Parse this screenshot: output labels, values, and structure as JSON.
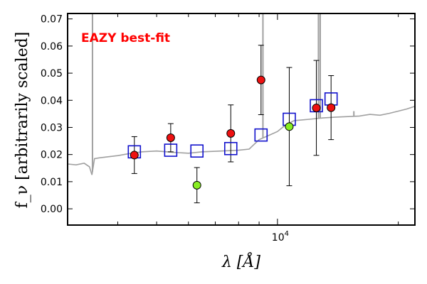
{
  "chart_data": {
    "type": "scatter",
    "title": "",
    "xlabel": "λ [Å]",
    "ylabel": "f_ν [arbitrarily scaled]",
    "xscale": "log",
    "xlim": [
      3000,
      22000
    ],
    "ylim": [
      -0.006,
      0.072
    ],
    "yticks": [
      0.0,
      0.01,
      0.02,
      0.03,
      0.04,
      0.05,
      0.06,
      0.07
    ],
    "ytick_labels": [
      "0.00",
      "0.01",
      "0.02",
      "0.03",
      "0.04",
      "0.05",
      "0.06",
      "0.07"
    ],
    "xtick_major": {
      "value": 10000,
      "label_base": "10",
      "label_exp": "4"
    },
    "xtick_minor": [
      4000,
      5000,
      6000,
      7000,
      8000,
      9000,
      20000
    ],
    "annotation": {
      "text": "EAZY best-fit",
      "color": "#ff0000"
    },
    "colors": {
      "model": "#a0a0a0",
      "observed_fill": "#ee1111",
      "lowsn_fill": "#88ee22",
      "template_box": "#1111cc",
      "errorbar": "#000000"
    },
    "series": [
      {
        "kind": "observed",
        "points": [
          {
            "x": 4400,
            "y": 0.0198,
            "err": 0.0068
          },
          {
            "x": 5420,
            "y": 0.0262,
            "err": 0.0052
          },
          {
            "x": 7650,
            "y": 0.0278,
            "err": 0.0105
          },
          {
            "x": 9100,
            "y": 0.0475,
            "err": 0.0128
          },
          {
            "x": 12500,
            "y": 0.0372,
            "err": 0.0175
          },
          {
            "x": 13600,
            "y": 0.0373,
            "err": 0.0118
          }
        ]
      },
      {
        "kind": "low_sn",
        "points": [
          {
            "x": 6300,
            "y": 0.0087,
            "err": 0.0065
          },
          {
            "x": 10700,
            "y": 0.0303,
            "err": 0.0218
          }
        ]
      },
      {
        "kind": "template_flux",
        "points": [
          {
            "x": 4400,
            "y": 0.021
          },
          {
            "x": 5420,
            "y": 0.0216
          },
          {
            "x": 6300,
            "y": 0.0213
          },
          {
            "x": 7650,
            "y": 0.0222
          },
          {
            "x": 9100,
            "y": 0.0272
          },
          {
            "x": 10700,
            "y": 0.033
          },
          {
            "x": 12500,
            "y": 0.038
          },
          {
            "x": 13600,
            "y": 0.0405
          }
        ]
      },
      {
        "kind": "model_spectrum",
        "x": [
          3000,
          3150,
          3300,
          3400,
          3450,
          3500,
          3600,
          3800,
          4000,
          4300,
          4600,
          5000,
          5500,
          6000,
          6500,
          7000,
          7500,
          8000,
          8500,
          9000,
          9500,
          10000,
          10500,
          11000,
          12000,
          13000,
          14000,
          15000,
          16000,
          17000,
          18000,
          19000,
          20000,
          21000,
          22000
        ],
        "y": [
          0.0165,
          0.0162,
          0.0168,
          0.0155,
          0.0125,
          0.0185,
          0.0188,
          0.0192,
          0.0196,
          0.0204,
          0.021,
          0.0213,
          0.0208,
          0.0205,
          0.021,
          0.0212,
          0.0214,
          0.0216,
          0.022,
          0.0255,
          0.027,
          0.0285,
          0.031,
          0.0325,
          0.033,
          0.0335,
          0.0338,
          0.034,
          0.0342,
          0.0348,
          0.0345,
          0.0352,
          0.036,
          0.0368,
          0.0378
        ],
        "emission_lines": [
          {
            "x": 3460,
            "y": 0.072
          },
          {
            "x": 9200,
            "y": 0.072
          },
          {
            "x": 12650,
            "y": 0.072
          },
          {
            "x": 12780,
            "y": 0.072
          },
          {
            "x": 15500,
            "y": 0.036
          }
        ]
      }
    ]
  }
}
